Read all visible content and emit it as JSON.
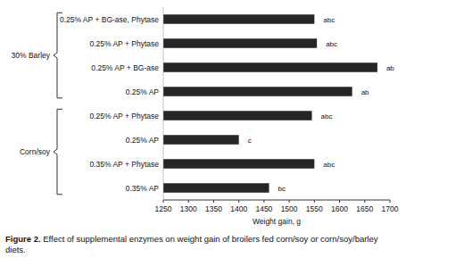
{
  "chart_data": {
    "type": "bar",
    "orientation": "horizontal",
    "caption_label": "Figure 2.",
    "caption": "Effect of supplemental enzymes on weight gain of broilers fed corn/soy or corn/soy/barley diets.",
    "x_label": "Weight gain, g",
    "categories": [
      "0.25% AP + BG-ase, Phytase",
      "0.25% AP + Phytase",
      "0.25% AP + BG-ase",
      "0.25% AP",
      "0.25% AP + Phytase",
      "0.25% AP",
      "0.35% AP + Phytase",
      "0.35% AP"
    ],
    "values": [
      1550,
      1555,
      1675,
      1625,
      1545,
      1400,
      1550,
      1460
    ],
    "annotations": [
      "abc",
      "abc",
      "ab",
      "ab",
      "abc",
      "c",
      "abc",
      "bc"
    ],
    "groups": [
      {
        "label": "30% Barley",
        "members": [
          0,
          1,
          2,
          3
        ]
      },
      {
        "label": "Corn/soy",
        "members": [
          4,
          5,
          6,
          7
        ]
      }
    ],
    "color": "#262626",
    "xlim": [
      1250,
      1700
    ],
    "xticks": [
      1250,
      1300,
      1350,
      1400,
      1450,
      1500,
      1550,
      1600,
      1650,
      1700
    ],
    "grid": false
  }
}
